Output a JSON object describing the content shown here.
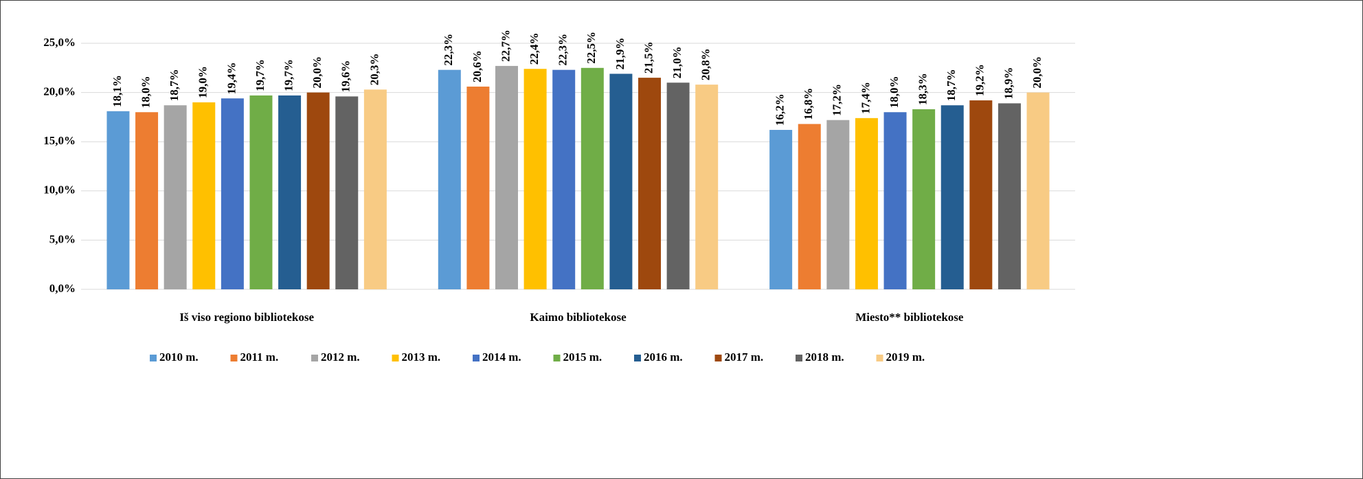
{
  "chart_data": {
    "type": "bar",
    "categories": [
      "Iš viso regiono bibliotekose",
      "Kaimo bibliotekose",
      "Miesto** bibliotekose"
    ],
    "ylim": [
      0,
      25
    ],
    "yticks": [
      {
        "value": 0,
        "label": "0,0%"
      },
      {
        "value": 5,
        "label": "5,0%"
      },
      {
        "value": 10,
        "label": "10,0%"
      },
      {
        "value": 15,
        "label": "15,0%"
      },
      {
        "value": 20,
        "label": "20,0%"
      },
      {
        "value": 25,
        "label": "25,0%"
      }
    ],
    "grid": true,
    "legend": "bottom",
    "series": [
      {
        "name": "2010 m.",
        "color": "#5b9bd5",
        "values": [
          18.1,
          22.3,
          16.2
        ],
        "value_labels": [
          "18,1%",
          "22,3%",
          "16,2%"
        ]
      },
      {
        "name": "2011 m.",
        "color": "#ed7d31",
        "values": [
          18.0,
          20.6,
          16.8
        ],
        "value_labels": [
          "18,0%",
          "20,6%",
          "16,8%"
        ]
      },
      {
        "name": "2012 m.",
        "color": "#a5a5a5",
        "values": [
          18.7,
          22.7,
          17.2
        ],
        "value_labels": [
          "18,7%",
          "22,7%",
          "17,2%"
        ]
      },
      {
        "name": "2013 m.",
        "color": "#ffc000",
        "values": [
          19.0,
          22.4,
          17.4
        ],
        "value_labels": [
          "19,0%",
          "22,4%",
          "17,4%"
        ]
      },
      {
        "name": "2014 m.",
        "color": "#4472c4",
        "values": [
          19.4,
          22.3,
          18.0
        ],
        "value_labels": [
          "19,4%",
          "22,3%",
          "18,0%"
        ]
      },
      {
        "name": "2015 m.",
        "color": "#70ad47",
        "values": [
          19.7,
          22.5,
          18.3
        ],
        "value_labels": [
          "19,7%",
          "22,5%",
          "18,3%"
        ]
      },
      {
        "name": "2016 m.",
        "color": "#255e91",
        "values": [
          19.7,
          21.9,
          18.7
        ],
        "value_labels": [
          "19,7%",
          "21,9%",
          "18,7%"
        ]
      },
      {
        "name": "2017 m.",
        "color": "#9e480e",
        "values": [
          20.0,
          21.5,
          19.2
        ],
        "value_labels": [
          "20,0%",
          "21,5%",
          "19,2%"
        ]
      },
      {
        "name": "2018 m.",
        "color": "#636363",
        "values": [
          19.6,
          21.0,
          18.9
        ],
        "value_labels": [
          "19,6%",
          "21,0%",
          "18,9%"
        ]
      },
      {
        "name": "2019 m.",
        "color": "#f8cb84",
        "values": [
          20.3,
          20.8,
          20.0
        ],
        "value_labels": [
          "20,3%",
          "20,8%",
          "20,0%"
        ]
      }
    ]
  }
}
